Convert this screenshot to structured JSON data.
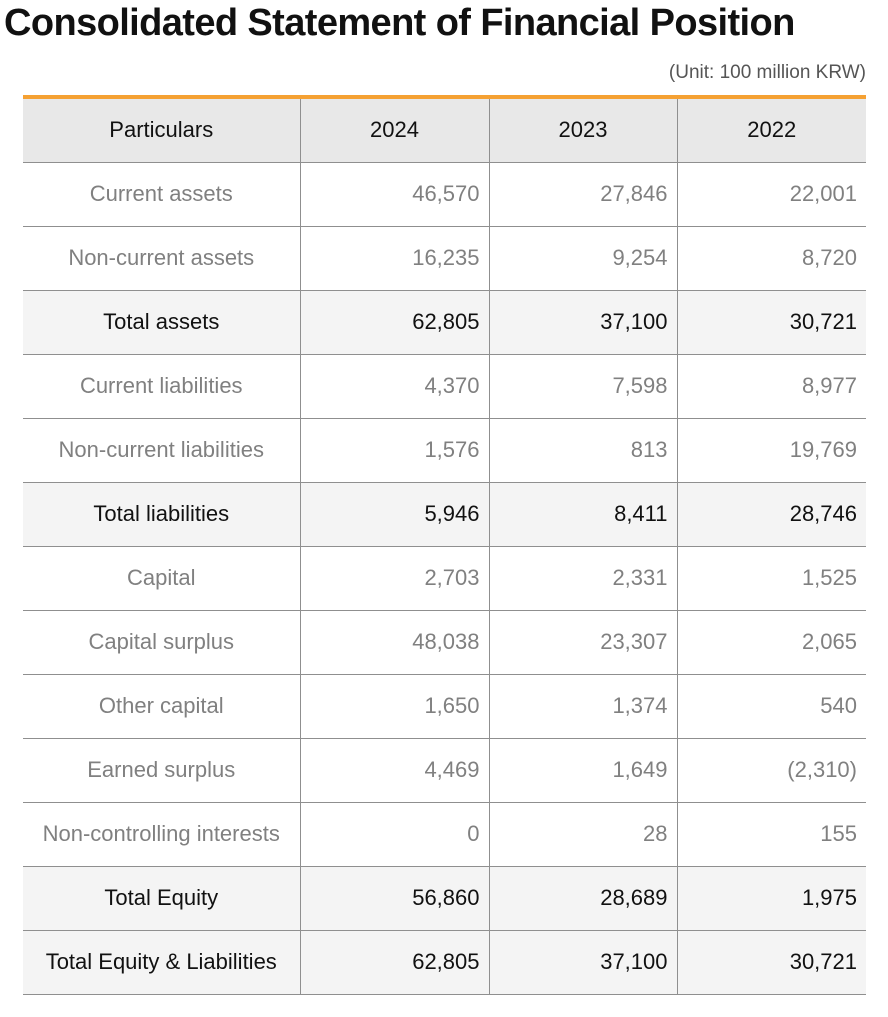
{
  "title": "Consolidated Statement of Financial Position",
  "unit": "(Unit: 100 million KRW)",
  "colors": {
    "accent": "#f5a133",
    "header_bg": "#e8e8e8",
    "total_row_bg": "#f4f4f4",
    "text_dark": "#111111",
    "text_muted": "#808080"
  },
  "table": {
    "headers": [
      "Particulars",
      "2024",
      "2023",
      "2022"
    ],
    "rows": [
      {
        "label": "Current assets",
        "values": [
          "46,570",
          "27,846",
          "22,001"
        ],
        "total": false
      },
      {
        "label": "Non-current assets",
        "values": [
          "16,235",
          "9,254",
          "8,720"
        ],
        "total": false
      },
      {
        "label": "Total assets",
        "values": [
          "62,805",
          "37,100",
          "30,721"
        ],
        "total": true
      },
      {
        "label": "Current liabilities",
        "values": [
          "4,370",
          "7,598",
          "8,977"
        ],
        "total": false
      },
      {
        "label": "Non-current liabilities",
        "values": [
          "1,576",
          "813",
          "19,769"
        ],
        "total": false
      },
      {
        "label": "Total liabilities",
        "values": [
          "5,946",
          "8,411",
          "28,746"
        ],
        "total": true
      },
      {
        "label": "Capital",
        "values": [
          "2,703",
          "2,331",
          "1,525"
        ],
        "total": false
      },
      {
        "label": "Capital surplus",
        "values": [
          "48,038",
          "23,307",
          "2,065"
        ],
        "total": false
      },
      {
        "label": "Other capital",
        "values": [
          "1,650",
          "1,374",
          "540"
        ],
        "total": false
      },
      {
        "label": "Earned surplus",
        "values": [
          "4,469",
          "1,649",
          "(2,310)"
        ],
        "total": false
      },
      {
        "label": "Non-controlling interests",
        "values": [
          "0",
          "28",
          "155"
        ],
        "total": false
      },
      {
        "label": "Total Equity",
        "values": [
          "56,860",
          "28,689",
          "1,975"
        ],
        "total": true
      },
      {
        "label": "Total Equity & Liabilities",
        "values": [
          "62,805",
          "37,100",
          "30,721"
        ],
        "total": true
      }
    ]
  }
}
